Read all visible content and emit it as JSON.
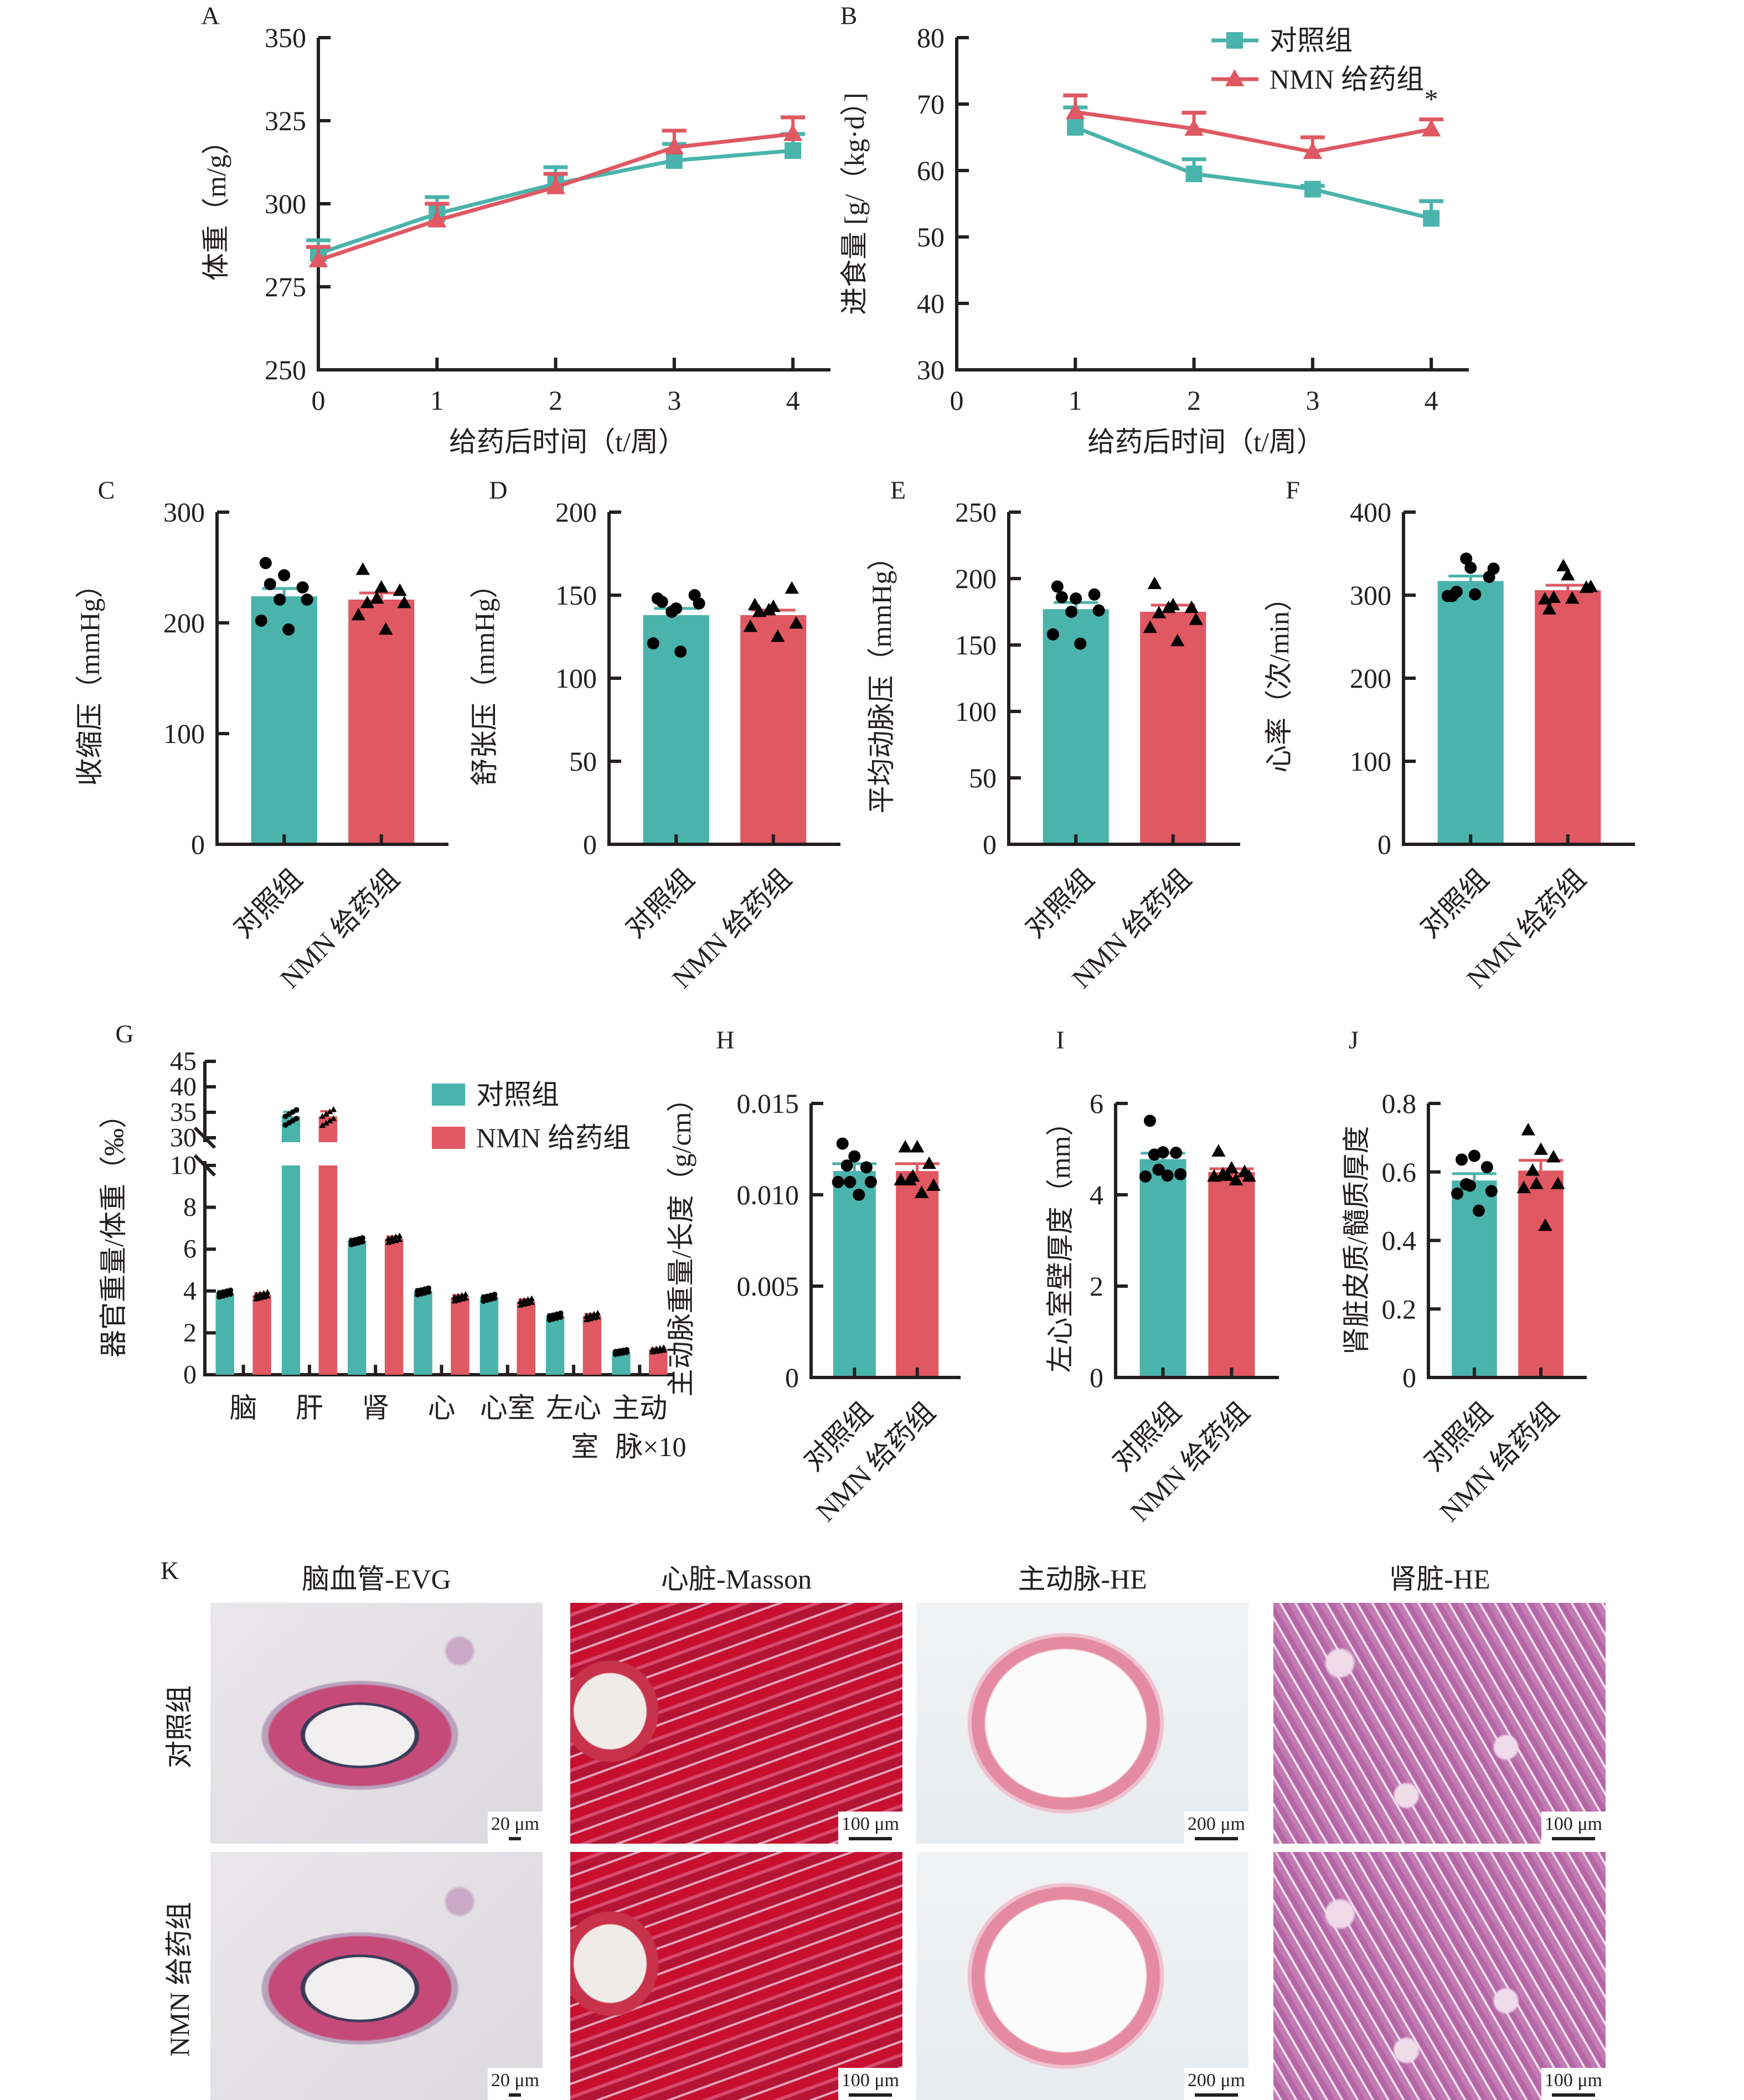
{
  "colors": {
    "control": "#4ab3ac",
    "nmn": "#df5862",
    "ink": "#231f20"
  },
  "groups": {
    "control": "对照组",
    "nmn": "NMN 给药组"
  },
  "chart_data": [
    {
      "id": "A",
      "panel_label": "A",
      "type": "line",
      "xlabel": "给药后时间（t/周）",
      "ylabel": "体重（m/g）",
      "x": [
        0,
        1,
        2,
        3,
        4
      ],
      "xticks": [
        "0",
        "1",
        "2",
        "3",
        "4"
      ],
      "xlim": [
        0,
        4.2
      ],
      "ylim": [
        250,
        350
      ],
      "yticks": [
        "250",
        "275",
        "300",
        "325",
        "350"
      ],
      "series": [
        {
          "name": "对照组",
          "marker": "square",
          "values": [
            285,
            297,
            306,
            313,
            316
          ],
          "errors": [
            4,
            5,
            5,
            5,
            5
          ]
        },
        {
          "name": "NMN 给药组",
          "marker": "triangle",
          "values": [
            283,
            295,
            305,
            317,
            321
          ],
          "errors": [
            4,
            5,
            4,
            5,
            5
          ]
        }
      ]
    },
    {
      "id": "B",
      "panel_label": "B",
      "type": "line",
      "xlabel": "给药后时间（t/周）",
      "ylabel": "进食量 [g/（kg·d）]",
      "x": [
        1,
        2,
        3,
        4
      ],
      "xticks": [
        "0",
        "1",
        "2",
        "3",
        "4"
      ],
      "xlim": [
        0,
        4.2
      ],
      "ylim": [
        30,
        80
      ],
      "yticks": [
        "30",
        "40",
        "50",
        "60",
        "70",
        "80"
      ],
      "legend": [
        "对照组",
        "NMN 给药组"
      ],
      "legend_position": "top-right",
      "annotation": "*",
      "series": [
        {
          "name": "对照组",
          "marker": "square",
          "values": [
            66.5,
            59.5,
            57.2,
            52.8
          ],
          "errors": [
            3.0,
            2.2,
            0.5,
            2.6
          ]
        },
        {
          "name": "NMN 给药组",
          "marker": "triangle",
          "values": [
            68.8,
            66.3,
            62.8,
            66.2
          ],
          "errors": [
            2.5,
            2.4,
            2.2,
            1.5
          ]
        }
      ]
    },
    {
      "id": "C",
      "panel_label": "C",
      "type": "bar",
      "ylabel": "收缩压（mmHg）",
      "categories": [
        "对照组",
        "NMN 给药组"
      ],
      "ylim": [
        0,
        300
      ],
      "yticks": [
        "0",
        "100",
        "200",
        "300"
      ],
      "values": [
        224,
        221
      ],
      "errors": [
        7,
        6
      ],
      "points": [
        [
          254,
          243,
          232,
          235,
          221,
          221,
          202,
          194
        ],
        [
          248,
          232,
          229,
          218,
          222,
          218,
          207,
          194
        ]
      ]
    },
    {
      "id": "D",
      "panel_label": "D",
      "type": "bar",
      "ylabel": "舒张压（mmHg）",
      "categories": [
        "对照组",
        "NMN 给药组"
      ],
      "ylim": [
        0,
        200
      ],
      "yticks": [
        "0",
        "50",
        "100",
        "150",
        "200"
      ],
      "values": [
        138,
        138
      ],
      "errors": [
        4,
        3
      ],
      "points": [
        [
          148,
          142,
          150,
          146,
          140,
          145,
          121,
          116
        ],
        [
          144,
          143,
          154,
          140,
          141,
          133,
          131,
          125
        ]
      ]
    },
    {
      "id": "E",
      "panel_label": "E",
      "type": "bar",
      "ylabel": "平均动脉压（mmHg）",
      "categories": [
        "对照组",
        "NMN 给药组"
      ],
      "ylim": [
        0,
        250
      ],
      "yticks": [
        "0",
        "50",
        "100",
        "150",
        "200",
        "250"
      ],
      "values": [
        177,
        175
      ],
      "errors": [
        5,
        5
      ],
      "points": [
        [
          194,
          185,
          188,
          186,
          175,
          176,
          158,
          151
        ],
        [
          196,
          180,
          178,
          174,
          178,
          169,
          163,
          153
        ]
      ]
    },
    {
      "id": "F",
      "panel_label": "F",
      "type": "bar",
      "ylabel": "心率（次/min）",
      "categories": [
        "对照组",
        "NMN 给药组"
      ],
      "ylim": [
        0,
        400
      ],
      "yticks": [
        "0",
        "100",
        "200",
        "300",
        "400"
      ],
      "values": [
        317,
        306
      ],
      "errors": [
        6,
        6
      ],
      "points": [
        [
          299,
          333,
          322,
          304,
          344,
          332,
          299,
          301
        ],
        [
          283,
          324,
          309,
          297,
          335,
          310,
          295,
          296
        ]
      ]
    },
    {
      "id": "G",
      "panel_label": "G",
      "type": "bar",
      "ylabel": "器官重量/体重（‰）",
      "categories": [
        "脑",
        "肝",
        "肾",
        "心",
        "心室",
        "左心室",
        "主动脉×10"
      ],
      "category_lines": [
        [
          "脑"
        ],
        [
          "肝"
        ],
        [
          "肾"
        ],
        [
          "心"
        ],
        [
          "心室"
        ],
        [
          "左心",
          "室"
        ],
        [
          "主动",
          "脉×10"
        ]
      ],
      "broken_axis": {
        "lower": [
          0,
          10
        ],
        "upper": [
          30,
          45
        ]
      },
      "yticks_lower": [
        "0",
        "2",
        "4",
        "6",
        "8",
        "10"
      ],
      "yticks_upper": [
        "30",
        "35",
        "40",
        "45"
      ],
      "legend": [
        "对照组",
        "NMN 给药组"
      ],
      "legend_position": "top-right",
      "series": [
        {
          "name": "对照组",
          "values": [
            3.9,
            34.2,
            6.4,
            4.0,
            3.7,
            2.8,
            1.1
          ],
          "errors": [
            0.1,
            0.9,
            0.1,
            0.1,
            0.1,
            0.1,
            0.05
          ]
        },
        {
          "name": "NMN 给药组",
          "values": [
            3.8,
            34.2,
            6.5,
            3.7,
            3.5,
            2.8,
            1.2
          ],
          "errors": [
            0.1,
            1.0,
            0.1,
            0.1,
            0.1,
            0.1,
            0.05
          ]
        }
      ]
    },
    {
      "id": "H",
      "panel_label": "H",
      "type": "bar",
      "ylabel": "主动脉重量/长度（g/cm）",
      "categories": [
        "对照组",
        "NMN 给药组"
      ],
      "ylim": [
        0,
        0.015
      ],
      "yticks": [
        "0",
        "0.005",
        "0.010",
        "0.015"
      ],
      "values": [
        0.0113,
        0.0113
      ],
      "errors": [
        0.0004,
        0.0004
      ],
      "points": [
        [
          0.0128,
          0.0121,
          0.0115,
          0.0116,
          0.0107,
          0.0107,
          0.0107,
          0.01
        ],
        [
          0.0126,
          0.0126,
          0.0117,
          0.0108,
          0.011,
          0.0105,
          0.0108,
          0.0101
        ]
      ]
    },
    {
      "id": "I",
      "panel_label": "I",
      "type": "bar",
      "ylabel": "左心室壁厚度（mm）",
      "categories": [
        "对照组",
        "NMN 给药组"
      ],
      "ylim": [
        0,
        6
      ],
      "yticks": [
        "0",
        "2",
        "4",
        "6"
      ],
      "values": [
        4.78,
        4.5
      ],
      "errors": [
        0.13,
        0.07
      ],
      "points": [
        [
          5.62,
          4.93,
          4.92,
          4.88,
          4.55,
          4.45,
          4.4,
          4.42
        ],
        [
          4.95,
          4.58,
          4.5,
          4.45,
          4.42,
          4.4,
          4.4,
          4.32
        ]
      ]
    },
    {
      "id": "J",
      "panel_label": "J",
      "type": "bar",
      "ylabel": "肾脏皮质/髓质厚度",
      "categories": [
        "对照组",
        "NMN 给药组"
      ],
      "ylim": [
        0,
        0.8
      ],
      "yticks": [
        "0",
        "0.2",
        "0.4",
        "0.6",
        "0.8"
      ],
      "values": [
        0.575,
        0.604
      ],
      "errors": [
        0.02,
        0.03
      ],
      "points": [
        [
          0.636,
          0.647,
          0.614,
          0.564,
          0.56,
          0.544,
          0.537,
          0.487
        ],
        [
          0.722,
          0.665,
          0.643,
          0.604,
          0.565,
          0.565,
          0.553,
          0.443
        ]
      ]
    }
  ],
  "histology": {
    "panel_label": "K",
    "columns": [
      {
        "title": "脑血管-EVG",
        "scale_bars": [
          "20 μm",
          "20 μm"
        ],
        "stain": "evg"
      },
      {
        "title": "心脏-Masson",
        "scale_bars": [
          "100 μm",
          "100 μm"
        ],
        "stain": "masson"
      },
      {
        "title": "主动脉-HE",
        "scale_bars": [
          "200 μm",
          "200 μm"
        ],
        "stain": "aorta"
      },
      {
        "title": "肾脏-HE",
        "scale_bars": [
          "100 μm",
          "100 μm"
        ],
        "stain": "kidney"
      }
    ],
    "rows": [
      "对照组",
      "NMN 给药组"
    ]
  }
}
